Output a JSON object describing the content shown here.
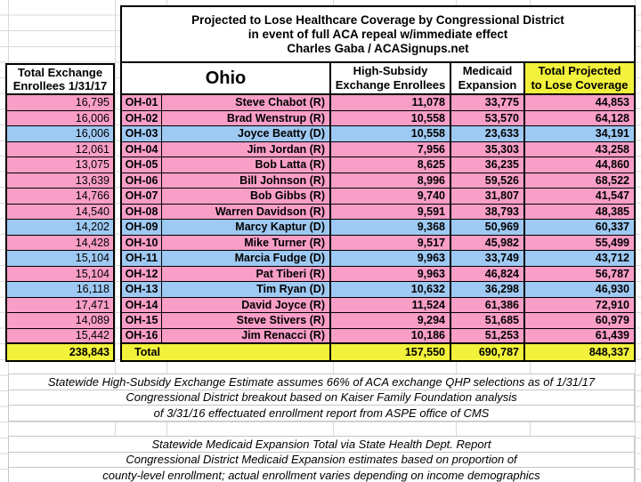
{
  "title": {
    "line1": "Projected to Lose Healthcare Coverage by Congressional District",
    "line2": "in event of full ACA repeal w/immediate effect",
    "line3": "Charles Gaba / ACASignups.net"
  },
  "left_column": {
    "header_line1": "Total Exchange",
    "header_line2": "Enrollees 1/31/17",
    "total": "238,843"
  },
  "table": {
    "state_label": "Ohio",
    "col_exchange_line1": "High-Subsidy",
    "col_exchange_line2": "Exchange Enrollees",
    "col_medicaid_line1": "Medicaid",
    "col_medicaid_line2": "Expansion",
    "col_total_line1": "Total Projected",
    "col_total_line2": "to Lose Coverage",
    "total_label": "Total",
    "totals": {
      "exchange": "157,550",
      "medicaid": "690,787",
      "lose_coverage": "848,337"
    }
  },
  "districts": [
    {
      "district": "OH-01",
      "rep": "Steve Chabot (R)",
      "party": "R",
      "total_exchange": "16,795",
      "high_subsidy": "11,078",
      "medicaid": "33,775",
      "lose": "44,853"
    },
    {
      "district": "OH-02",
      "rep": "Brad Wenstrup (R)",
      "party": "R",
      "total_exchange": "16,006",
      "high_subsidy": "10,558",
      "medicaid": "53,570",
      "lose": "64,128"
    },
    {
      "district": "OH-03",
      "rep": "Joyce Beatty (D)",
      "party": "D",
      "total_exchange": "16,006",
      "high_subsidy": "10,558",
      "medicaid": "23,633",
      "lose": "34,191"
    },
    {
      "district": "OH-04",
      "rep": "Jim Jordan (R)",
      "party": "R",
      "total_exchange": "12,061",
      "high_subsidy": "7,956",
      "medicaid": "35,303",
      "lose": "43,258"
    },
    {
      "district": "OH-05",
      "rep": "Bob Latta (R)",
      "party": "R",
      "total_exchange": "13,075",
      "high_subsidy": "8,625",
      "medicaid": "36,235",
      "lose": "44,860"
    },
    {
      "district": "OH-06",
      "rep": "Bill Johnson (R)",
      "party": "R",
      "total_exchange": "13,639",
      "high_subsidy": "8,996",
      "medicaid": "59,526",
      "lose": "68,522"
    },
    {
      "district": "OH-07",
      "rep": "Bob Gibbs (R)",
      "party": "R",
      "total_exchange": "14,766",
      "high_subsidy": "9,740",
      "medicaid": "31,807",
      "lose": "41,547"
    },
    {
      "district": "OH-08",
      "rep": "Warren Davidson (R)",
      "party": "R",
      "total_exchange": "14,540",
      "high_subsidy": "9,591",
      "medicaid": "38,793",
      "lose": "48,385"
    },
    {
      "district": "OH-09",
      "rep": "Marcy Kaptur (D)",
      "party": "D",
      "total_exchange": "14,202",
      "high_subsidy": "9,368",
      "medicaid": "50,969",
      "lose": "60,337"
    },
    {
      "district": "OH-10",
      "rep": "Mike Turner (R)",
      "party": "R",
      "total_exchange": "14,428",
      "high_subsidy": "9,517",
      "medicaid": "45,982",
      "lose": "55,499"
    },
    {
      "district": "OH-11",
      "rep": "Marcia Fudge (D)",
      "party": "D",
      "total_exchange": "15,104",
      "high_subsidy": "9,963",
      "medicaid": "33,749",
      "lose": "43,712"
    },
    {
      "district": "OH-12",
      "rep": "Pat Tiberi (R)",
      "party": "R",
      "total_exchange": "15,104",
      "high_subsidy": "9,963",
      "medicaid": "46,824",
      "lose": "56,787"
    },
    {
      "district": "OH-13",
      "rep": "Tim Ryan (D)",
      "party": "D",
      "total_exchange": "16,118",
      "high_subsidy": "10,632",
      "medicaid": "36,298",
      "lose": "46,930"
    },
    {
      "district": "OH-14",
      "rep": "David Joyce (R)",
      "party": "R",
      "total_exchange": "17,471",
      "high_subsidy": "11,524",
      "medicaid": "61,386",
      "lose": "72,910"
    },
    {
      "district": "OH-15",
      "rep": "Steve Stivers (R)",
      "party": "R",
      "total_exchange": "14,089",
      "high_subsidy": "9,294",
      "medicaid": "51,685",
      "lose": "60,979"
    },
    {
      "district": "OH-16",
      "rep": "Jim Renacci (R)",
      "party": "R",
      "total_exchange": "15,442",
      "high_subsidy": "10,186",
      "medicaid": "51,253",
      "lose": "61,439"
    }
  ],
  "footnotes": {
    "block1": [
      "Statewide High-Subsidy Exchange Estimate assumes 66% of ACA exchange QHP selections as of 1/31/17",
      "Congressional District breakout based on Kaiser Family Foundation analysis",
      "of 3/31/16 effectuated enrollment report from ASPE office of CMS"
    ],
    "block2": [
      "Statewide Medicaid Expansion Total via State Health Dept. Report",
      "Congressional District Medicaid Expansion estimates based on proportion of",
      "county-level enrollment; actual enrollment varies depending on income demographics"
    ]
  },
  "colors": {
    "republican_row": "#F99EC7",
    "democrat_row": "#9EC9F2",
    "highlight_yellow": "#F2F23C"
  }
}
